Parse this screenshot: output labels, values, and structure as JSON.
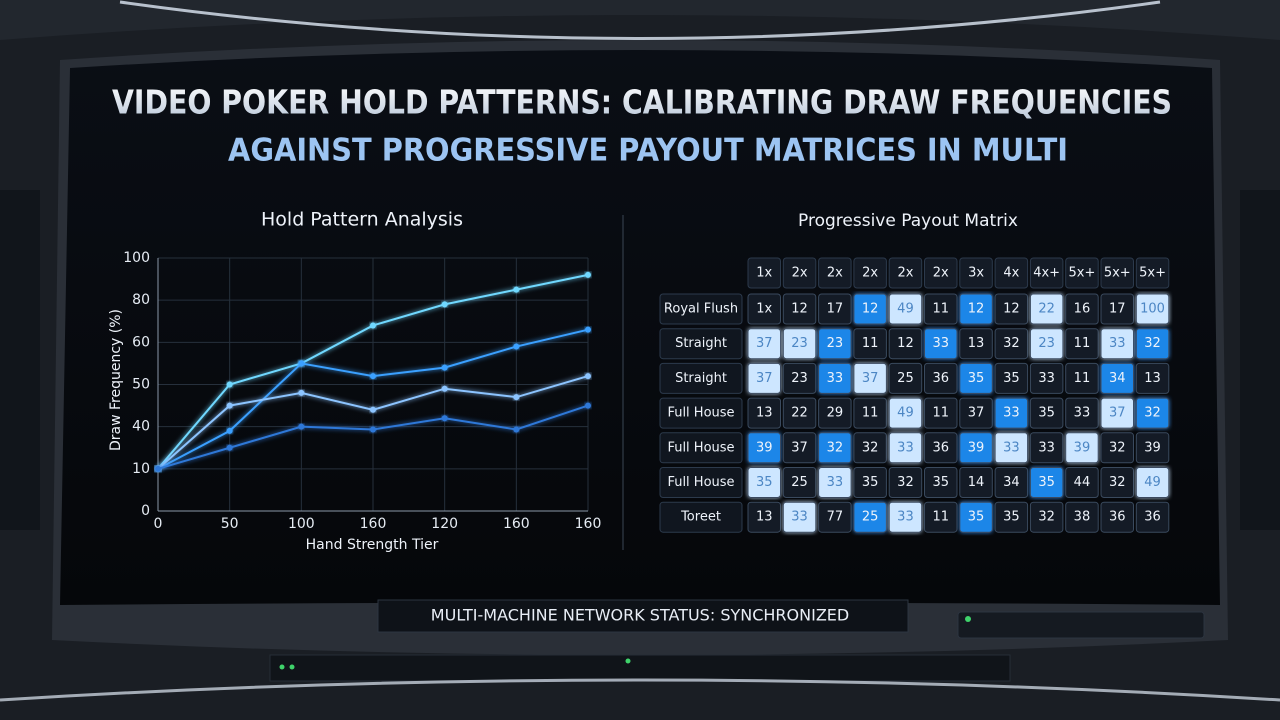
{
  "header": {
    "title_lines": [
      "VIDEO POKER HOLD PATTERNS: CALIBRATING DRAW FREQUENCIES",
      "AGAINST PROGRESSIVE PAYOUT MATRICES IN MULTI"
    ]
  },
  "chart_data": {
    "type": "line",
    "title": "Hold Pattern Analysis",
    "x_label": "Hand Strength Tier",
    "y_label": "Draw Frequency (%)",
    "categories": [
      "0",
      "50",
      "100",
      "160",
      "120",
      "160",
      "160"
    ],
    "ylim": [
      0,
      100
    ],
    "yticks": [
      0,
      10,
      40,
      50,
      60,
      80,
      100
    ],
    "grid": true,
    "series": [
      {
        "color": "#6fd8ff",
        "values": [
          10,
          50,
          55,
          68,
          78,
          85,
          92
        ]
      },
      {
        "color": "#3aa0ff",
        "values": [
          10,
          37,
          55,
          52,
          54,
          59,
          66
        ]
      },
      {
        "color": "#8cc4ff",
        "values": [
          10,
          45,
          48,
          44,
          49,
          47,
          52
        ]
      },
      {
        "color": "#2f78d8",
        "values": [
          10,
          25,
          40,
          38,
          42,
          38,
          45
        ]
      }
    ]
  },
  "table": {
    "title": "Progressive Payout Matrix",
    "columns": [
      "1x",
      "2x",
      "2x",
      "2x",
      "2x",
      "2x",
      "3x",
      "4x",
      "4x+",
      "5x+",
      "5x+",
      "5x+"
    ],
    "rows": [
      {
        "label": "Royal Flush",
        "cells": [
          "1x",
          "12",
          "17",
          "12",
          "49",
          "11",
          "12",
          "12",
          "22",
          "16",
          "17",
          "100"
        ],
        "colors": [
          "#141b26",
          "#141b26",
          "#141b26",
          "#1c86e8",
          "#cde6ff",
          "#141b26",
          "#1c86e8",
          "#141b26",
          "#cde6ff",
          "#141b26",
          "#141b26",
          "#cde6ff"
        ]
      },
      {
        "label": "Straight",
        "cells": [
          "37",
          "23",
          "23",
          "11",
          "12",
          "33",
          "13",
          "32",
          "23",
          "11",
          "33",
          "32"
        ],
        "colors": [
          "#cde6ff",
          "#cde6ff",
          "#1c86e8",
          "#141b26",
          "#141b26",
          "#1c86e8",
          "#141b26",
          "#141b26",
          "#cde6ff",
          "#141b26",
          "#cde6ff",
          "#1c86e8"
        ]
      },
      {
        "label": "Straight",
        "cells": [
          "37",
          "23",
          "33",
          "37",
          "25",
          "36",
          "35",
          "35",
          "33",
          "11",
          "34",
          "13"
        ],
        "colors": [
          "#cde6ff",
          "#141b26",
          "#1c86e8",
          "#cde6ff",
          "#141b26",
          "#141b26",
          "#1c86e8",
          "#141b26",
          "#141b26",
          "#141b26",
          "#1c86e8",
          "#141b26"
        ]
      },
      {
        "label": "Full House",
        "cells": [
          "13",
          "22",
          "29",
          "11",
          "49",
          "11",
          "37",
          "33",
          "35",
          "33",
          "37",
          "32"
        ],
        "colors": [
          "#141b26",
          "#141b26",
          "#141b26",
          "#141b26",
          "#cde6ff",
          "#141b26",
          "#141b26",
          "#1c86e8",
          "#141b26",
          "#141b26",
          "#cde6ff",
          "#1c86e8"
        ]
      },
      {
        "label": "Full House",
        "cells": [
          "39",
          "37",
          "32",
          "32",
          "33",
          "36",
          "39",
          "33",
          "33",
          "39",
          "32",
          "39"
        ],
        "colors": [
          "#1c86e8",
          "#141b26",
          "#1c86e8",
          "#141b26",
          "#cde6ff",
          "#141b26",
          "#1c86e8",
          "#cde6ff",
          "#141b26",
          "#cde6ff",
          "#141b26",
          "#141b26"
        ]
      },
      {
        "label": "Full House",
        "cells": [
          "35",
          "25",
          "33",
          "35",
          "32",
          "35",
          "14",
          "34",
          "35",
          "44",
          "32",
          "49"
        ],
        "colors": [
          "#cde6ff",
          "#141b26",
          "#cde6ff",
          "#141b26",
          "#141b26",
          "#141b26",
          "#141b26",
          "#141b26",
          "#1c86e8",
          "#141b26",
          "#141b26",
          "#cde6ff"
        ]
      },
      {
        "label": "Toreet",
        "cells": [
          "13",
          "33",
          "77",
          "25",
          "33",
          "11",
          "35",
          "35",
          "32",
          "38",
          "36",
          "36"
        ],
        "colors": [
          "#141b26",
          "#cde6ff",
          "#141b26",
          "#1c86e8",
          "#cde6ff",
          "#141b26",
          "#1c86e8",
          "#141b26",
          "#141b26",
          "#141b26",
          "#141b26",
          "#141b26"
        ]
      }
    ]
  },
  "footer": {
    "status": "MULTI-MACHINE NETWORK STATUS: SYNCHRONIZED"
  }
}
